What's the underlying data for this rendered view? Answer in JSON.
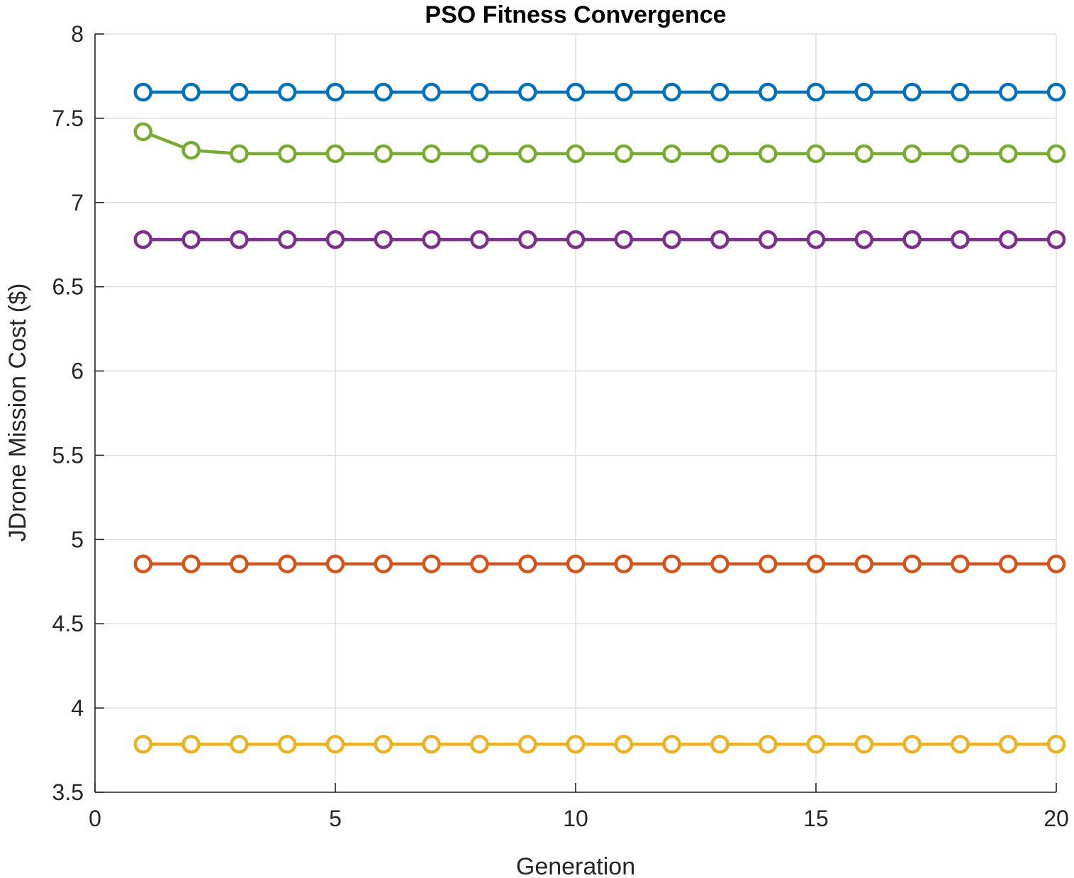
{
  "chart_data": {
    "type": "line",
    "title": "PSO Fitness Convergence",
    "xlabel": "Generation",
    "ylabel": "JDrone Mission Cost ($)",
    "xlim": [
      0,
      20
    ],
    "ylim": [
      3.5,
      8
    ],
    "xticks": [
      0,
      5,
      10,
      15,
      20
    ],
    "yticks": [
      3.5,
      4,
      4.5,
      5,
      5.5,
      6,
      6.5,
      7,
      7.5,
      8
    ],
    "grid": true,
    "legend": null,
    "marker": "circle",
    "x": [
      1,
      2,
      3,
      4,
      5,
      6,
      7,
      8,
      9,
      10,
      11,
      12,
      13,
      14,
      15,
      16,
      17,
      18,
      19,
      20
    ],
    "series": [
      {
        "color": "#0072BD",
        "values": [
          7.655,
          7.655,
          7.655,
          7.655,
          7.655,
          7.655,
          7.655,
          7.655,
          7.655,
          7.655,
          7.655,
          7.655,
          7.655,
          7.655,
          7.655,
          7.655,
          7.655,
          7.655,
          7.655,
          7.655
        ]
      },
      {
        "color": "#D95319",
        "values": [
          4.855,
          4.855,
          4.855,
          4.855,
          4.855,
          4.855,
          4.855,
          4.855,
          4.855,
          4.855,
          4.855,
          4.855,
          4.855,
          4.855,
          4.855,
          4.855,
          4.855,
          4.855,
          4.855,
          4.855
        ]
      },
      {
        "color": "#EDB120",
        "values": [
          3.785,
          3.785,
          3.785,
          3.785,
          3.785,
          3.785,
          3.785,
          3.785,
          3.785,
          3.785,
          3.785,
          3.785,
          3.785,
          3.785,
          3.785,
          3.785,
          3.785,
          3.785,
          3.785,
          3.785
        ]
      },
      {
        "color": "#7E2F8E",
        "values": [
          6.78,
          6.78,
          6.78,
          6.78,
          6.78,
          6.78,
          6.78,
          6.78,
          6.78,
          6.78,
          6.78,
          6.78,
          6.78,
          6.78,
          6.78,
          6.78,
          6.78,
          6.78,
          6.78,
          6.78
        ]
      },
      {
        "color": "#77AC30",
        "values": [
          7.42,
          7.31,
          7.29,
          7.29,
          7.29,
          7.29,
          7.29,
          7.29,
          7.29,
          7.29,
          7.29,
          7.29,
          7.29,
          7.29,
          7.29,
          7.29,
          7.29,
          7.29,
          7.29,
          7.29
        ]
      }
    ]
  }
}
